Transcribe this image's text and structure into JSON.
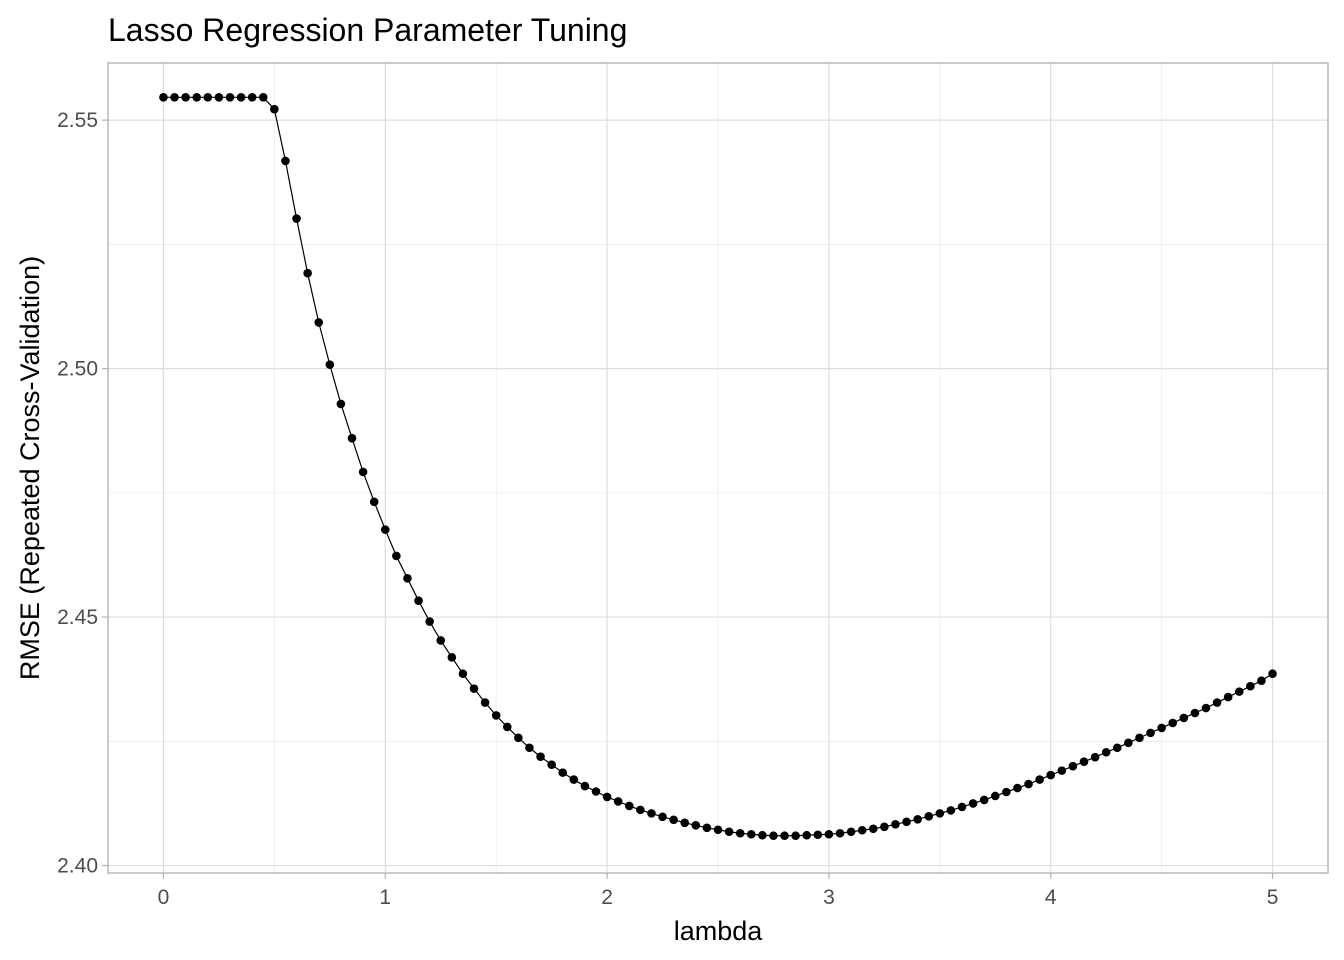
{
  "chart_data": {
    "type": "line",
    "title": "Lasso Regression Parameter Tuning",
    "xlabel": "lambda",
    "ylabel": "RMSE (Repeated Cross-Validation)",
    "xlim": [
      -0.25,
      5.25
    ],
    "ylim": [
      2.3985,
      2.5615
    ],
    "x_ticks": [
      0,
      1,
      2,
      3,
      4,
      5
    ],
    "x_tick_labels": [
      "0",
      "1",
      "2",
      "3",
      "4",
      "5"
    ],
    "y_ticks": [
      2.4,
      2.45,
      2.5,
      2.55
    ],
    "y_tick_labels": [
      "2.40",
      "2.45",
      "2.50",
      "2.55"
    ],
    "grid": true,
    "markers": true,
    "series": [
      {
        "name": "RMSE",
        "x": [
          0.0,
          0.05,
          0.1,
          0.15,
          0.2,
          0.25,
          0.3,
          0.35,
          0.4,
          0.45,
          0.5,
          0.55,
          0.6,
          0.65,
          0.7,
          0.75,
          0.8,
          0.85,
          0.9,
          0.95,
          1.0,
          1.05,
          1.1,
          1.15,
          1.2,
          1.25,
          1.3,
          1.35,
          1.4,
          1.45,
          1.5,
          1.55,
          1.6,
          1.65,
          1.7,
          1.75,
          1.8,
          1.85,
          1.9,
          1.95,
          2.0,
          2.05,
          2.1,
          2.15,
          2.2,
          2.25,
          2.3,
          2.35,
          2.4,
          2.45,
          2.5,
          2.55,
          2.6,
          2.65,
          2.7,
          2.75,
          2.8,
          2.85,
          2.9,
          2.95,
          3.0,
          3.05,
          3.1,
          3.15,
          3.2,
          3.25,
          3.3,
          3.35,
          3.4,
          3.45,
          3.5,
          3.55,
          3.6,
          3.65,
          3.7,
          3.75,
          3.8,
          3.85,
          3.9,
          3.95,
          4.0,
          4.05,
          4.1,
          4.15,
          4.2,
          4.25,
          4.3,
          4.35,
          4.4,
          4.45,
          4.5,
          4.55,
          4.6,
          4.65,
          4.7,
          4.75,
          4.8,
          4.85,
          4.9,
          4.95,
          5.0
        ],
        "values": [
          2.5546,
          2.5546,
          2.5546,
          2.5546,
          2.5546,
          2.5546,
          2.5546,
          2.5546,
          2.5546,
          2.5546,
          2.5522,
          2.5418,
          2.5302,
          2.5192,
          2.5093,
          2.5008,
          2.4929,
          2.486,
          2.4792,
          2.4732,
          2.4676,
          2.4623,
          2.4578,
          2.4533,
          2.4491,
          2.4453,
          2.4419,
          2.4386,
          2.4356,
          2.4328,
          2.4302,
          2.4279,
          2.4257,
          2.4237,
          2.4219,
          2.4203,
          2.4187,
          2.4173,
          2.416,
          2.4149,
          2.4138,
          2.4129,
          2.412,
          2.4112,
          2.4105,
          2.4098,
          2.4092,
          2.4086,
          2.4081,
          2.4076,
          2.4072,
          2.4068,
          2.4065,
          2.4063,
          2.4061,
          2.406,
          2.406,
          2.406,
          2.4061,
          2.4062,
          2.4063,
          2.4065,
          2.4068,
          2.4071,
          2.4074,
          2.4078,
          2.4083,
          2.4088,
          2.4093,
          2.4099,
          2.4105,
          2.4111,
          2.4118,
          2.4125,
          2.4132,
          2.414,
          2.4148,
          2.4156,
          2.4164,
          2.4173,
          2.4182,
          2.4191,
          2.42,
          2.4209,
          2.4218,
          2.4228,
          2.4237,
          2.4247,
          2.4257,
          2.4267,
          2.4277,
          2.4287,
          2.4297,
          2.4307,
          2.4317,
          2.4328,
          2.4339,
          2.435,
          2.4361,
          2.4372,
          2.4386
        ]
      }
    ]
  }
}
